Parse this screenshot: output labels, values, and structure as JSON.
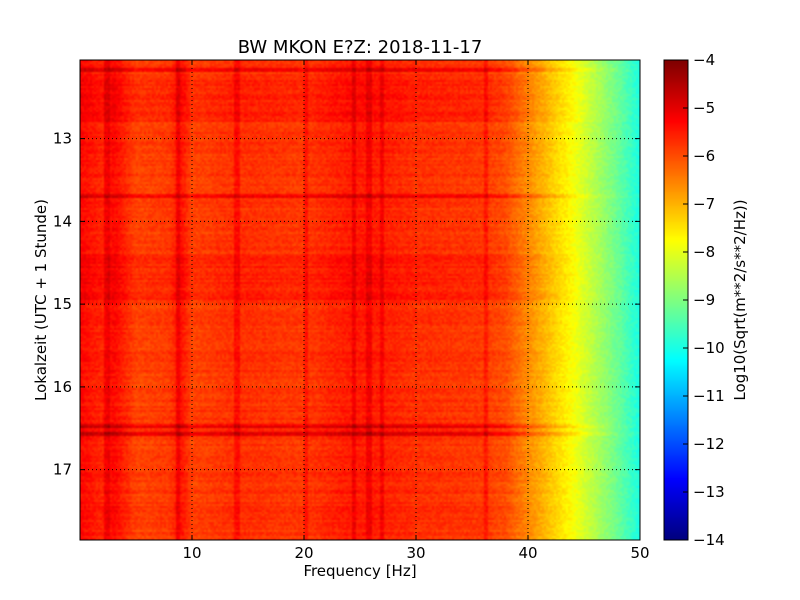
{
  "chart_data": {
    "type": "heatmap",
    "title": "BW MKON E?Z: 2018-11-17",
    "xlabel": "Frequency [Hz]",
    "ylabel": "Lokalzeit (UTC + 1 Stunde)",
    "xlim": [
      0.0,
      50.0
    ],
    "ylim": [
      17.85,
      12.05
    ],
    "y_axis_inverted": true,
    "x_ticks": [
      {
        "value": 10,
        "label": "10"
      },
      {
        "value": 20,
        "label": "20"
      },
      {
        "value": 30,
        "label": "30"
      },
      {
        "value": 40,
        "label": "40"
      },
      {
        "value": 50,
        "label": "50"
      }
    ],
    "y_ticks": [
      {
        "value": 13,
        "label": "13"
      },
      {
        "value": 14,
        "label": "14"
      },
      {
        "value": 15,
        "label": "15"
      },
      {
        "value": 16,
        "label": "16"
      },
      {
        "value": 17,
        "label": "17"
      }
    ],
    "grid": true,
    "colormap": "jet",
    "colorbar": {
      "label": "Log10(Sqrt(m**2/s**2/Hz))",
      "min": -14,
      "max": -4,
      "ticks": [
        {
          "value": -4,
          "label": "−4"
        },
        {
          "value": -5,
          "label": "−5"
        },
        {
          "value": -6,
          "label": "−6"
        },
        {
          "value": -7,
          "label": "−7"
        },
        {
          "value": -8,
          "label": "−8"
        },
        {
          "value": -9,
          "label": "−9"
        },
        {
          "value": -10,
          "label": "−10"
        },
        {
          "value": -11,
          "label": "−11"
        },
        {
          "value": -12,
          "label": "−12"
        },
        {
          "value": -13,
          "label": "−13"
        },
        {
          "value": -14,
          "label": "−14"
        }
      ]
    },
    "spectrum_profile": {
      "description_values": "approximate mean log10 amplitude vs frequency",
      "freq": [
        0,
        2,
        3,
        5,
        8,
        9,
        10,
        14,
        20,
        24,
        26,
        30,
        36,
        38,
        40,
        42,
        44,
        46,
        48,
        50
      ],
      "value": [
        -5.3,
        -5.6,
        -5.3,
        -5.9,
        -5.8,
        -5.4,
        -5.9,
        -5.7,
        -5.8,
        -5.5,
        -5.5,
        -5.7,
        -5.8,
        -6.0,
        -6.6,
        -7.2,
        -7.8,
        -8.5,
        -9.2,
        -10.0
      ]
    },
    "vertical_lines_hz": [
      2.4,
      8.8,
      14.0,
      20.2,
      24.5,
      25.8,
      27.0,
      36.2
    ],
    "strong_time_bands": [
      12.17,
      13.7,
      16.47,
      16.57
    ],
    "active_time_ranges": [
      [
        12.3,
        12.8
      ],
      [
        14.4,
        14.95
      ],
      [
        16.47,
        16.6
      ]
    ]
  }
}
